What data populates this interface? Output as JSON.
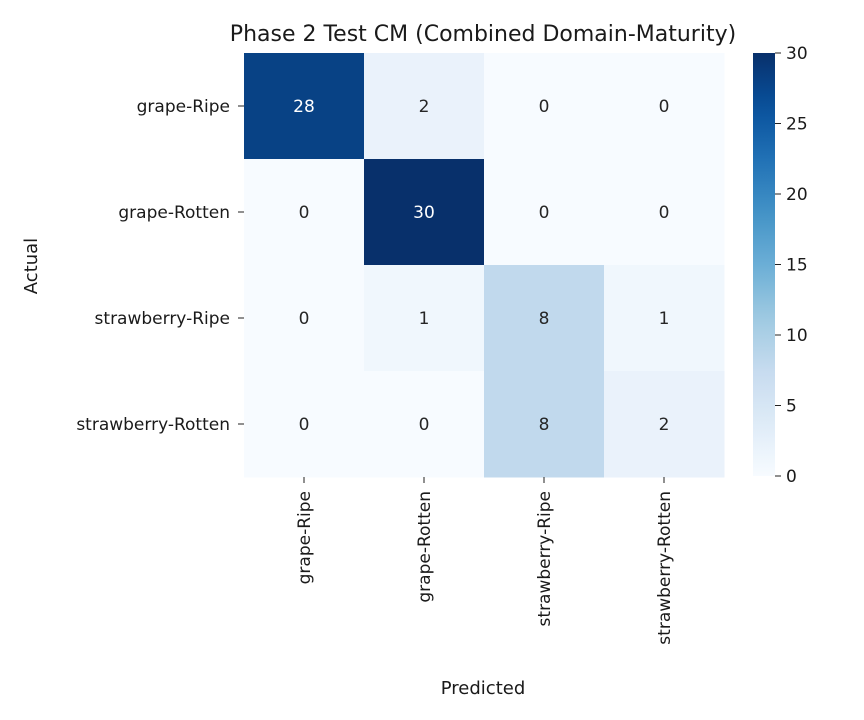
{
  "chart_data": {
    "type": "heatmap",
    "title": "Phase 2 Test CM (Combined Domain-Maturity)",
    "xlabel": "Predicted",
    "ylabel": "Actual",
    "x_categories": [
      "grape-Ripe",
      "grape-Rotten",
      "strawberry-Ripe",
      "strawberry-Rotten"
    ],
    "y_categories": [
      "grape-Ripe",
      "grape-Rotten",
      "strawberry-Ripe",
      "strawberry-Rotten"
    ],
    "values": [
      [
        28,
        2,
        0,
        0
      ],
      [
        0,
        30,
        0,
        0
      ],
      [
        0,
        1,
        8,
        1
      ],
      [
        0,
        0,
        8,
        2
      ]
    ],
    "colorbar": {
      "range": [
        0,
        30
      ],
      "ticks": [
        0,
        5,
        10,
        15,
        20,
        25,
        30
      ],
      "colormap": "Blues"
    }
  }
}
